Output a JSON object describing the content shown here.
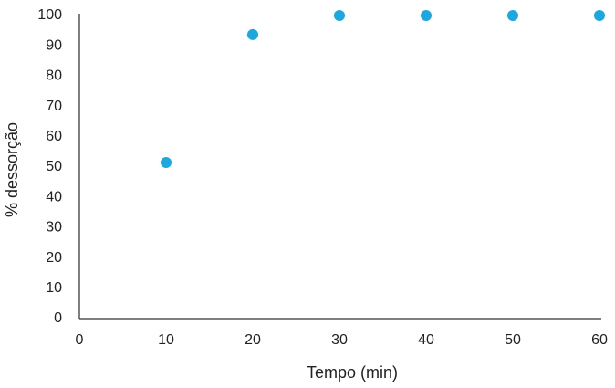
{
  "chart_data": {
    "type": "scatter",
    "x_label": "Tempo (min)",
    "y_label": "% dessorção",
    "series": [
      {
        "name": "% dessorção",
        "color": "#1ba7e0",
        "x": [
          10,
          20,
          30,
          40,
          50,
          60
        ],
        "values": [
          51.5,
          93.7,
          100,
          100,
          100,
          100
        ]
      }
    ],
    "xlim": [
      0,
      60
    ],
    "xticks": [
      0,
      10,
      20,
      30,
      40,
      50,
      60
    ],
    "ylim": [
      0,
      100
    ],
    "yticks": [
      0,
      10,
      20,
      30,
      40,
      50,
      60,
      70,
      80,
      90,
      100
    ],
    "grid": false
  }
}
